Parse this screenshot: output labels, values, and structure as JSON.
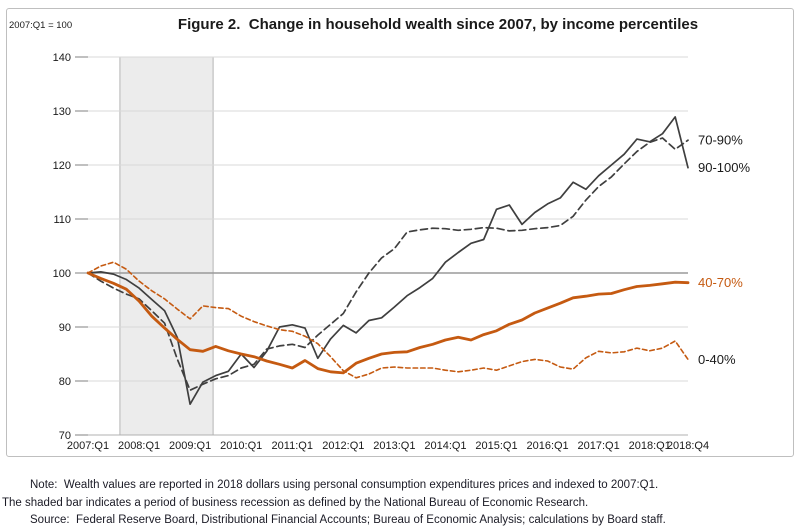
{
  "figure": {
    "title": "Figure 2.  Change in household wealth since 2007, by income percentiles",
    "axis_unit_label": "2007:Q1 = 100"
  },
  "notes": {
    "line1": "Note:  Wealth values are reported in 2018 dollars using personal consumption expenditures prices and indexed to 2007:Q1.",
    "line2": "The shaded bar indicates a period of business recession as defined by the National Bureau of Economic Research.",
    "line3": "Source:  Federal Reserve Board, Distributional Financial Accounts; Bureau of Economic Analysis; calculations by Board staff."
  },
  "colors": {
    "dark_line": "#3f3f3f",
    "orange_line": "#c55a11",
    "gridline": "#d9d9d9",
    "reference_line": "#9a9a9a",
    "axis_line": "#b0b0b0",
    "tick": "#808080",
    "band_fill": "#ececec",
    "band_edge": "#b5b5b5",
    "text": "#1a1a1a"
  },
  "chart_data": {
    "type": "line",
    "title": "Figure 2.  Change in household wealth since 2007, by income percentiles",
    "xlabel": "",
    "ylabel": "2007:Q1 = 100",
    "ylim": [
      70,
      140
    ],
    "y_ticks": [
      70,
      80,
      90,
      100,
      110,
      120,
      130,
      140
    ],
    "reference_line": 100,
    "grid": "horizontal",
    "legend_position": "right-end-labels",
    "n_quarters": 48,
    "x_start": "2007:Q1",
    "x_end": "2018:Q4",
    "x_tick_labels": [
      "2007:Q1",
      "2008:Q1",
      "2009:Q1",
      "2010:Q1",
      "2011:Q1",
      "2012:Q1",
      "2013:Q1",
      "2014:Q1",
      "2015:Q1",
      "2016:Q1",
      "2017:Q1",
      "2018:Q1",
      "2018:Q4"
    ],
    "x_tick_indices": [
      0,
      4,
      8,
      12,
      16,
      20,
      24,
      28,
      32,
      36,
      40,
      44,
      47
    ],
    "recession_band": {
      "start_index": 2.5,
      "end_index": 9.8,
      "note": "2007:Q4 - 2009:Q2 NBER recession"
    },
    "series": [
      {
        "name": "70-90%",
        "style": "dashed",
        "color": "#3f3f3f",
        "label_color": "#1a1a1a",
        "width": 1.7,
        "dash": "7,4",
        "values": [
          100,
          98.5,
          97.2,
          96.1,
          95.2,
          93.0,
          90.7,
          84.0,
          78.3,
          79.4,
          80.4,
          81.0,
          82.4,
          83.1,
          85.9,
          86.5,
          86.8,
          86.2,
          88.5,
          90.5,
          92.5,
          96.5,
          100.0,
          102.8,
          104.5,
          107.6,
          108.0,
          108.3,
          108.2,
          107.9,
          108.1,
          108.4,
          108.3,
          107.8,
          107.9,
          108.2,
          108.4,
          108.8,
          110.5,
          113.5,
          116.0,
          117.8,
          120.2,
          122.5,
          124.2,
          125.0,
          122.9,
          124.6
        ]
      },
      {
        "name": "90-100%",
        "style": "solid",
        "color": "#3f3f3f",
        "label_color": "#1a1a1a",
        "width": 1.7,
        "dash": "",
        "values": [
          100,
          100.2,
          99.8,
          98.8,
          97.2,
          95.1,
          93.0,
          88.0,
          75.7,
          79.8,
          81.0,
          81.8,
          85.0,
          82.5,
          85.5,
          90.0,
          90.4,
          89.8,
          84.2,
          87.8,
          90.3,
          88.9,
          91.2,
          91.7,
          93.7,
          95.8,
          97.3,
          99.0,
          102.0,
          103.8,
          105.5,
          106.2,
          111.8,
          112.6,
          109.0,
          111.2,
          112.8,
          113.9,
          116.8,
          115.5,
          118.0,
          120.0,
          122.0,
          124.8,
          124.3,
          125.8,
          128.9,
          119.5
        ]
      },
      {
        "name": "40-70%",
        "style": "solid",
        "color": "#c55a11",
        "label_color": "#c55a11",
        "width": 2.8,
        "dash": "",
        "values": [
          100,
          99.0,
          98.1,
          97.0,
          94.8,
          92.0,
          89.8,
          87.7,
          85.8,
          85.5,
          86.4,
          85.6,
          85.0,
          84.5,
          83.7,
          83.1,
          82.4,
          83.8,
          82.3,
          81.7,
          81.5,
          83.3,
          84.2,
          85.0,
          85.3,
          85.4,
          86.2,
          86.8,
          87.6,
          88.1,
          87.6,
          88.6,
          89.3,
          90.5,
          91.3,
          92.6,
          93.5,
          94.4,
          95.4,
          95.7,
          96.1,
          96.2,
          96.9,
          97.5,
          97.7,
          98.0,
          98.3,
          98.2
        ]
      },
      {
        "name": "0-40%",
        "style": "dashed",
        "color": "#c55a11",
        "label_color": "#1a1a1a",
        "width": 1.6,
        "dash": "4.5,3",
        "values": [
          100,
          101.3,
          102.0,
          100.7,
          98.5,
          96.7,
          95.2,
          93.3,
          91.5,
          93.9,
          93.6,
          93.4,
          92.0,
          91.0,
          90.2,
          89.5,
          89.2,
          88.3,
          86.9,
          84.5,
          81.9,
          80.6,
          81.3,
          82.4,
          82.6,
          82.4,
          82.4,
          82.4,
          82.0,
          81.7,
          82.0,
          82.4,
          82.0,
          82.8,
          83.6,
          84.0,
          83.7,
          82.6,
          82.2,
          84.3,
          85.5,
          85.2,
          85.4,
          86.1,
          85.6,
          86.1,
          87.4,
          84.0
        ]
      }
    ]
  }
}
